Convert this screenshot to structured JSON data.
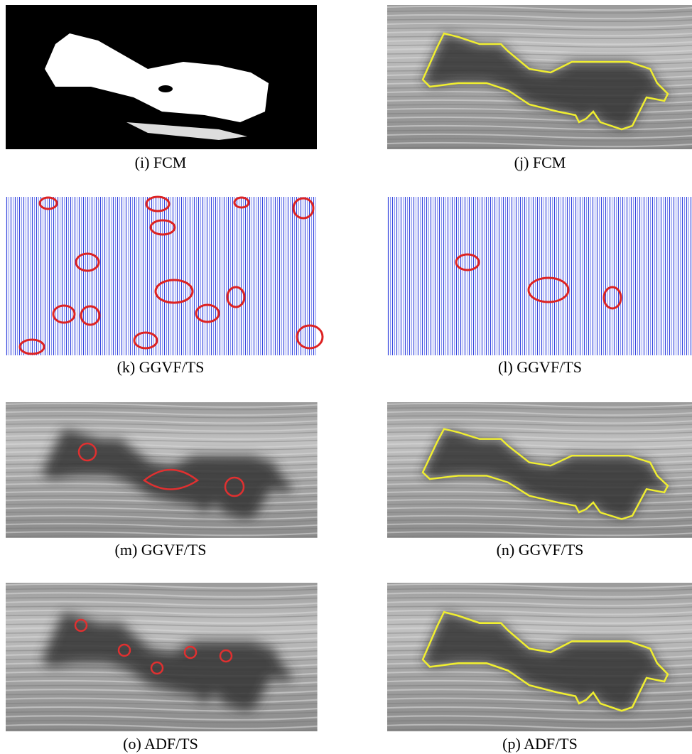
{
  "panels": [
    {
      "caption": "(i) FCM"
    },
    {
      "caption": "(j) FCM"
    },
    {
      "caption": "(k) GGVF/TS"
    },
    {
      "caption": "(l) GGVF/TS"
    },
    {
      "caption": "(m) GGVF/TS"
    },
    {
      "caption": "(n) GGVF/TS"
    },
    {
      "caption": "(o) ADF/TS"
    },
    {
      "caption": "(p) ADF/TS"
    }
  ]
}
